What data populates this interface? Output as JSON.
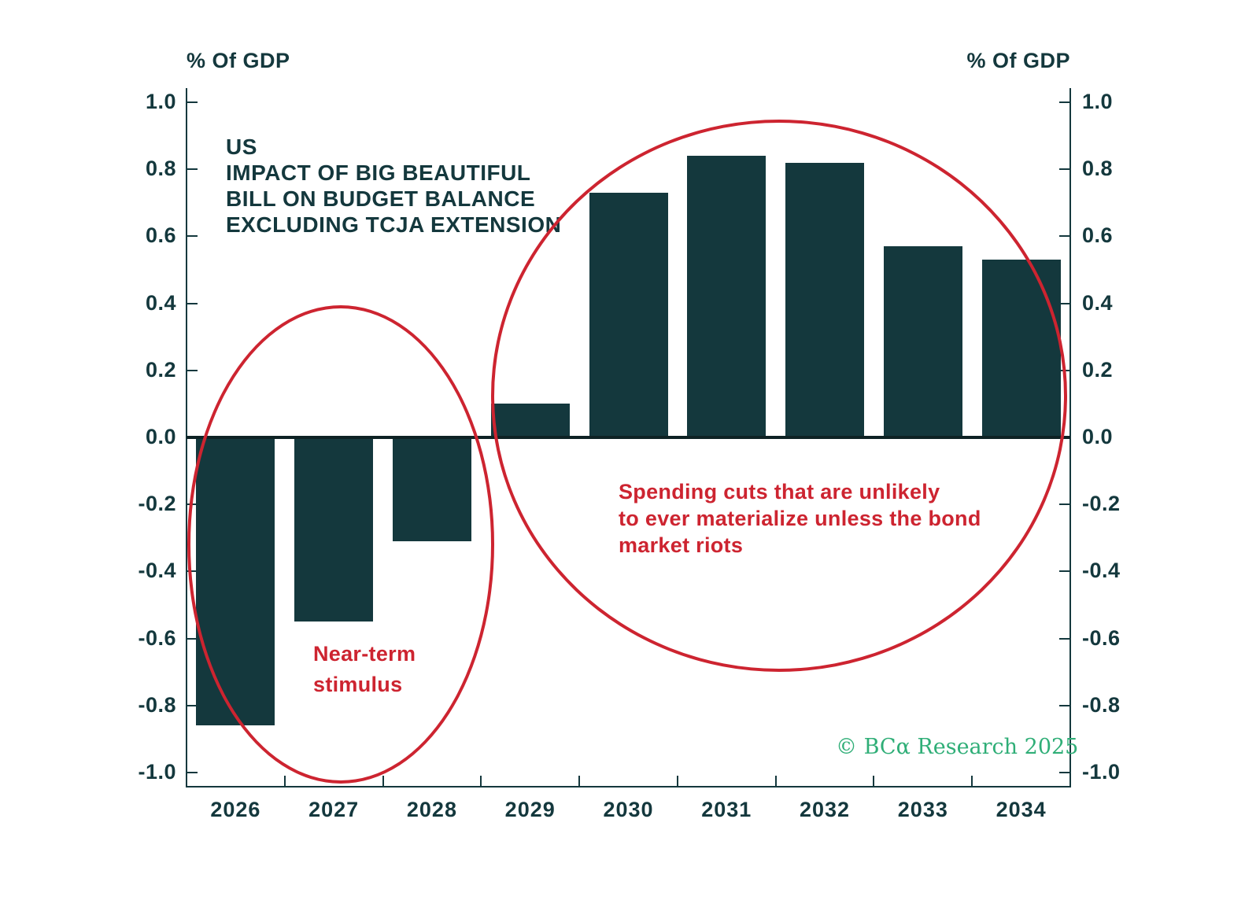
{
  "chart_data": {
    "type": "bar",
    "title": "US\nIMPACT OF BIG BEAUTIFUL\nBILL ON BUDGET BALANCE\nEXCLUDING TCJA EXTENSION",
    "ylabel_left": "% Of GDP",
    "ylabel_right": "% Of GDP",
    "categories": [
      "2026",
      "2027",
      "2028",
      "2029",
      "2030",
      "2031",
      "2032",
      "2033",
      "2034"
    ],
    "values": [
      -0.86,
      -0.55,
      -0.31,
      0.1,
      0.73,
      0.84,
      0.82,
      0.57,
      0.53
    ],
    "ylim": [
      -1.0,
      1.0
    ],
    "ytick_step": 0.2,
    "ytick_format_decimals": 1,
    "grid": false,
    "legend": "none",
    "bar_color": "#14383d",
    "axis_color": "#14383d",
    "annotation_color": "#cd2430",
    "source_color": "#2fae77",
    "annotations": [
      {
        "text": "Near-term\nstimulus",
        "shape": "ellipse",
        "covers": [
          "2026",
          "2027",
          "2028"
        ]
      },
      {
        "text": "Spending cuts that are unlikely\nto ever materialize unless the bond\nmarket riots",
        "shape": "ellipse",
        "covers": [
          "2029",
          "2030",
          "2031",
          "2032",
          "2033",
          "2034"
        ]
      }
    ],
    "source": "© BCα Research 2025"
  }
}
